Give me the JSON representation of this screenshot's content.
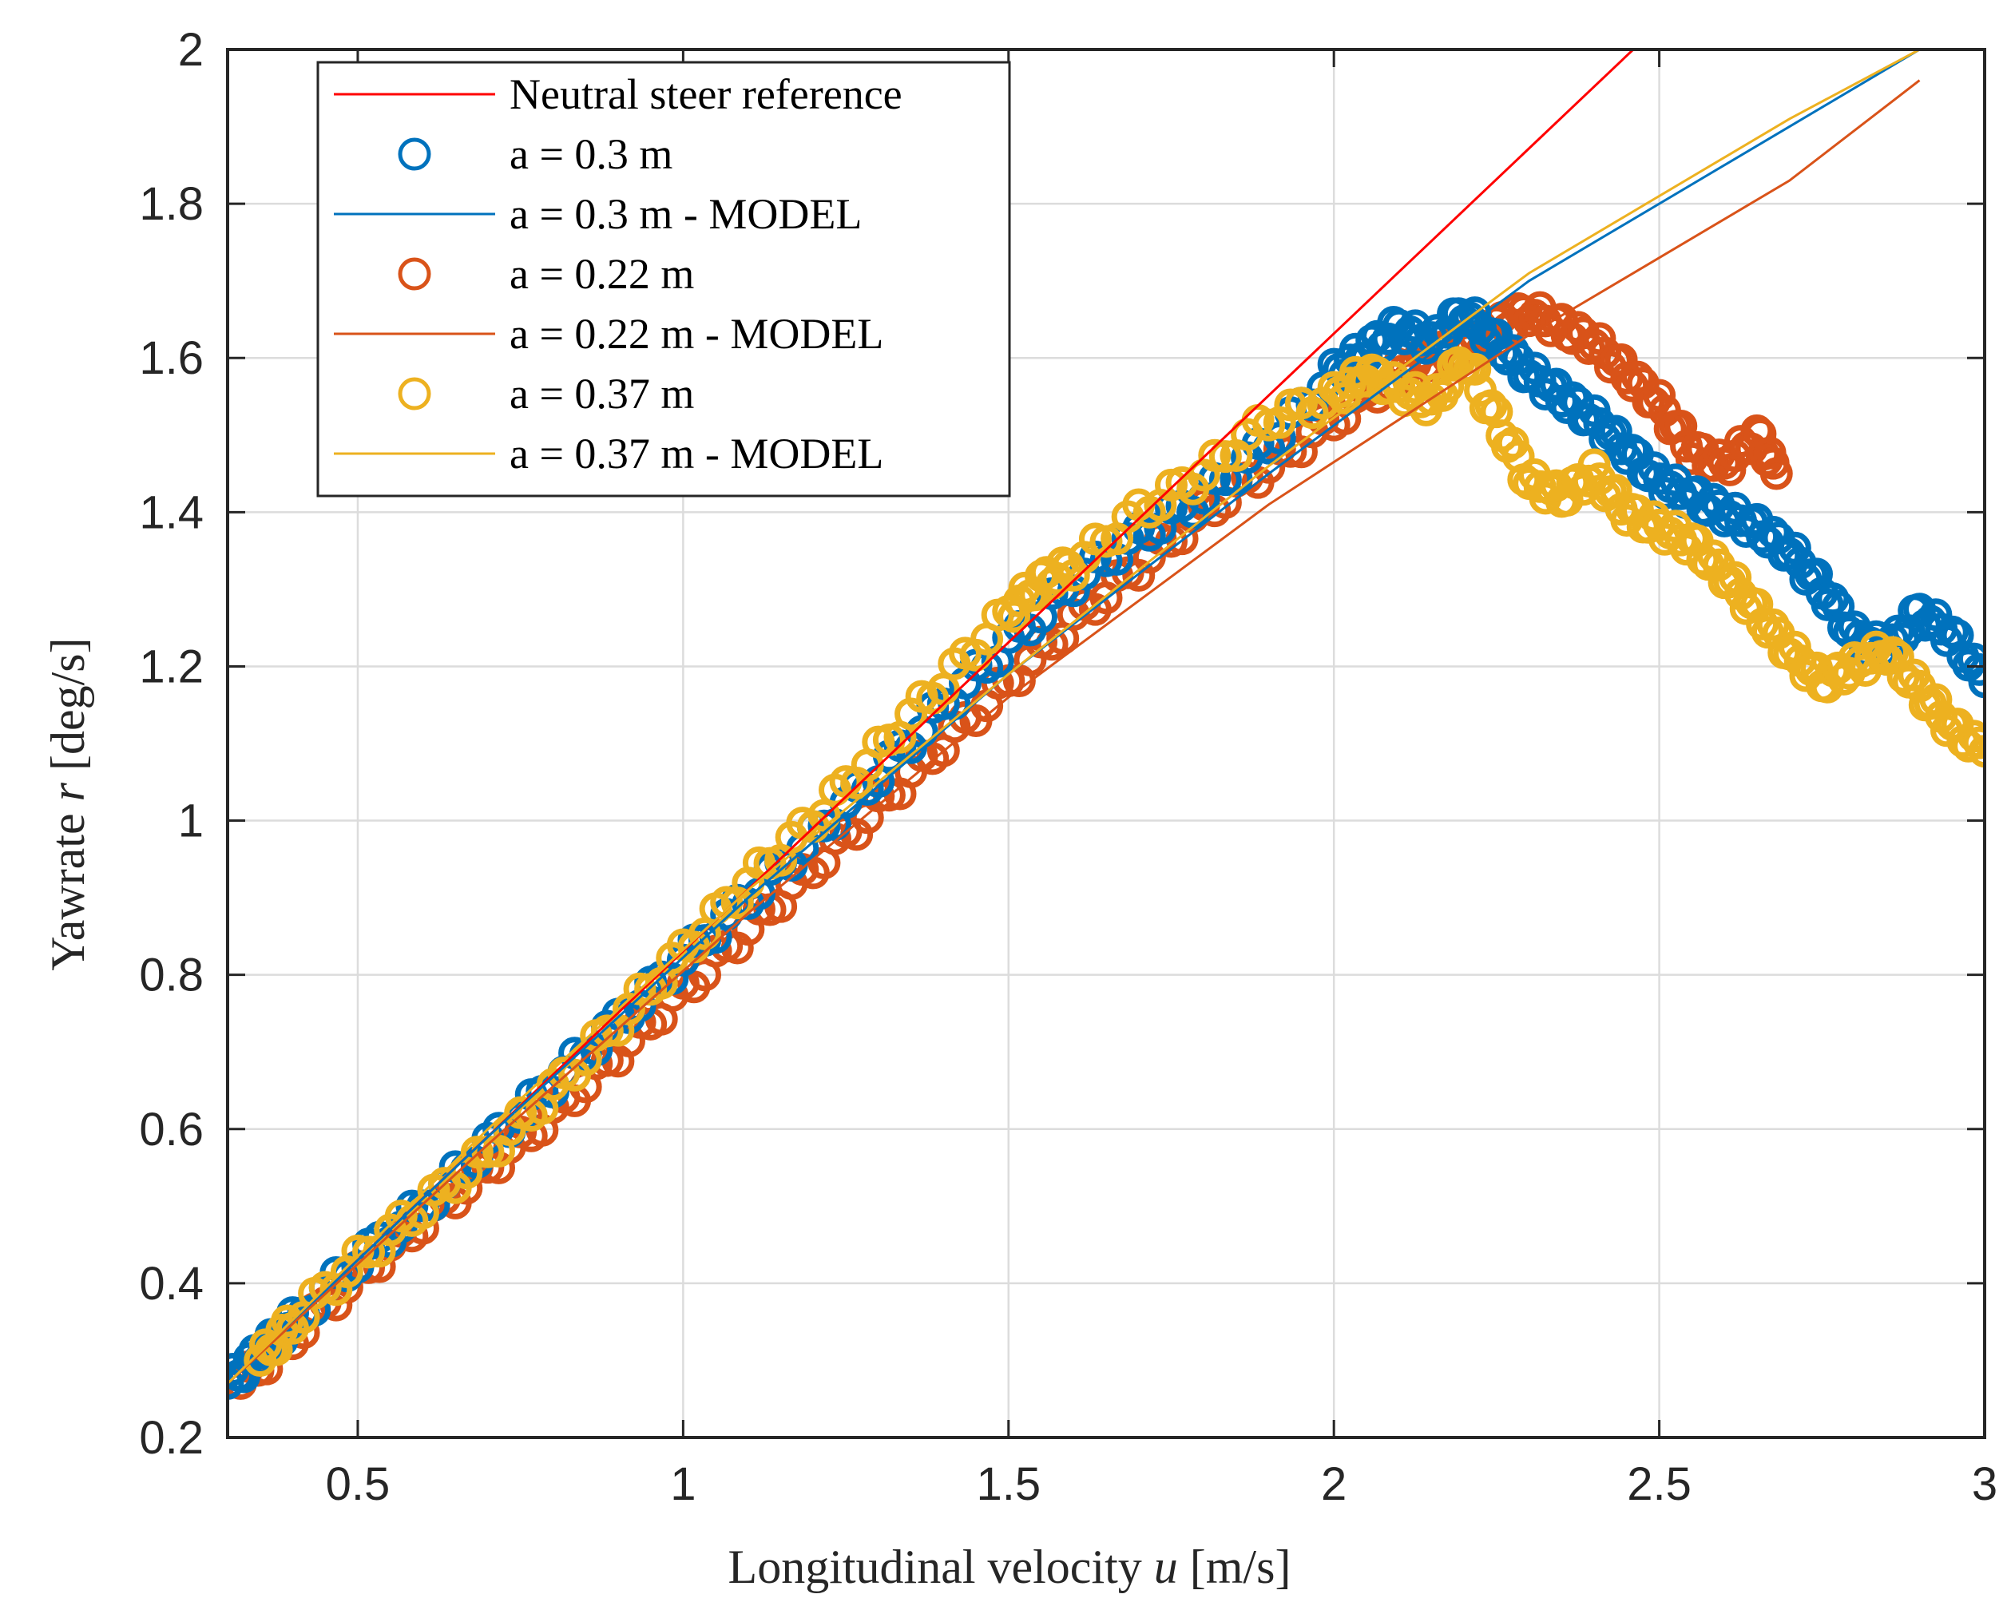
{
  "chart_data": {
    "type": "scatter",
    "xlabel": "Longitudinal velocity",
    "xlabel_var": "u",
    "xlabel_unit": "[m/s]",
    "ylabel": "Yawrate",
    "ylabel_var": "r",
    "ylabel_unit": "[deg/s]",
    "xlim": [
      0.3,
      3
    ],
    "ylim": [
      0.2,
      2
    ],
    "xticks": [
      0.5,
      1,
      1.5,
      2,
      2.5,
      3
    ],
    "xtick_labels": [
      "0.5",
      "1",
      "1.5",
      "2",
      "2.5",
      "3"
    ],
    "yticks": [
      0.2,
      0.4,
      0.6,
      0.8,
      1,
      1.2,
      1.4,
      1.6,
      1.8,
      2
    ],
    "ytick_labels": [
      "0.2",
      "0.4",
      "0.6",
      "0.8",
      "1",
      "1.2",
      "1.4",
      "1.6",
      "1.8",
      "2"
    ],
    "grid": true,
    "legend_position": "top-left",
    "series": [
      {
        "name": "Neutral steer reference",
        "kind": "line",
        "color": "#FF0000",
        "x": [
          0.3,
          2.46
        ],
        "y": [
          0.27,
          2.0
        ]
      },
      {
        "name": "a = 0.3 m",
        "kind": "scatter",
        "color": "#0072BD",
        "x": [
          0.3,
          0.35,
          0.4,
          0.5,
          0.6,
          0.7,
          0.8,
          0.9,
          1.0,
          1.1,
          1.2,
          1.3,
          1.4,
          1.5,
          1.6,
          1.7,
          1.8,
          1.9,
          2.0,
          2.05,
          2.1,
          2.15,
          2.2,
          2.25,
          2.3,
          2.35,
          2.4,
          2.45,
          2.5,
          2.55,
          2.6,
          2.65,
          2.7,
          2.75,
          2.8,
          2.85,
          2.9,
          2.95,
          3.0
        ],
        "y": [
          0.27,
          0.31,
          0.35,
          0.43,
          0.5,
          0.58,
          0.66,
          0.74,
          0.82,
          0.9,
          0.98,
          1.06,
          1.15,
          1.23,
          1.31,
          1.37,
          1.42,
          1.49,
          1.58,
          1.61,
          1.64,
          1.62,
          1.66,
          1.62,
          1.58,
          1.55,
          1.52,
          1.48,
          1.44,
          1.42,
          1.4,
          1.38,
          1.35,
          1.3,
          1.24,
          1.22,
          1.27,
          1.24,
          1.18
        ]
      },
      {
        "name": "a = 0.3 m - MODEL",
        "kind": "line",
        "color": "#0072BD",
        "x": [
          0.3,
          0.7,
          1.1,
          1.5,
          1.9,
          2.3,
          2.7,
          2.9
        ],
        "y": [
          0.27,
          0.59,
          0.9,
          1.19,
          1.45,
          1.7,
          1.9,
          2.0
        ]
      },
      {
        "name": "a = 0.22 m",
        "kind": "scatter",
        "color": "#D95319",
        "x": [
          0.32,
          0.4,
          0.5,
          0.6,
          0.7,
          0.8,
          0.9,
          1.0,
          1.1,
          1.2,
          1.3,
          1.4,
          1.5,
          1.6,
          1.7,
          1.8,
          1.9,
          2.0,
          2.1,
          2.15,
          2.2,
          2.25,
          2.3,
          2.35,
          2.4,
          2.45,
          2.5,
          2.55,
          2.6,
          2.65,
          2.68
        ],
        "y": [
          0.27,
          0.33,
          0.41,
          0.48,
          0.55,
          0.62,
          0.7,
          0.78,
          0.86,
          0.94,
          1.02,
          1.1,
          1.18,
          1.26,
          1.33,
          1.4,
          1.46,
          1.52,
          1.58,
          1.6,
          1.62,
          1.64,
          1.66,
          1.64,
          1.62,
          1.58,
          1.54,
          1.48,
          1.46,
          1.5,
          1.45
        ]
      },
      {
        "name": "a = 0.22 m - MODEL",
        "kind": "line",
        "color": "#D95319",
        "x": [
          0.3,
          0.7,
          1.1,
          1.5,
          1.9,
          2.3,
          2.7,
          2.9
        ],
        "y": [
          0.27,
          0.58,
          0.88,
          1.16,
          1.41,
          1.63,
          1.83,
          1.96
        ]
      },
      {
        "name": "a = 0.37 m",
        "kind": "scatter",
        "color": "#EDB120",
        "x": [
          0.35,
          0.4,
          0.5,
          0.6,
          0.7,
          0.8,
          0.9,
          1.0,
          1.1,
          1.2,
          1.3,
          1.4,
          1.5,
          1.55,
          1.6,
          1.7,
          1.8,
          1.9,
          2.0,
          2.05,
          2.1,
          2.15,
          2.2,
          2.25,
          2.3,
          2.35,
          2.4,
          2.45,
          2.5,
          2.55,
          2.6,
          2.65,
          2.7,
          2.75,
          2.8,
          2.85,
          2.9,
          2.95,
          3.0
        ],
        "y": [
          0.3,
          0.35,
          0.43,
          0.5,
          0.57,
          0.65,
          0.74,
          0.83,
          0.92,
          1.0,
          1.09,
          1.18,
          1.27,
          1.31,
          1.33,
          1.4,
          1.45,
          1.52,
          1.55,
          1.58,
          1.56,
          1.54,
          1.6,
          1.52,
          1.44,
          1.42,
          1.45,
          1.4,
          1.38,
          1.36,
          1.32,
          1.27,
          1.22,
          1.18,
          1.2,
          1.22,
          1.17,
          1.12,
          1.09
        ]
      },
      {
        "name": "a = 0.37 m - MODEL",
        "kind": "line",
        "color": "#EDB120",
        "x": [
          0.3,
          0.7,
          1.1,
          1.5,
          1.9,
          2.3,
          2.7,
          2.9
        ],
        "y": [
          0.27,
          0.6,
          0.91,
          1.19,
          1.46,
          1.71,
          1.91,
          2.0
        ]
      }
    ]
  }
}
